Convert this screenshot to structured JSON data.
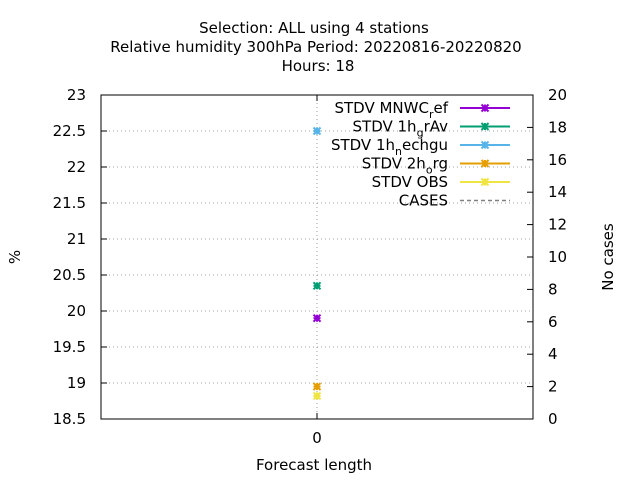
{
  "chart_data": {
    "type": "scatter",
    "title": {
      "line1": "Selection: ALL using     4 stations",
      "line2": "Relative humidity 300hPa   Period: 20220816-20220820",
      "line3": "Hours:  18"
    },
    "xlabel": "Forecast length",
    "ylabel": "%",
    "y2label": "No cases",
    "categories": [
      "0"
    ],
    "ylim": [
      18.5,
      23
    ],
    "y2lim": [
      0,
      20
    ],
    "yticks": [
      "18.5",
      "19",
      "19.5",
      "20",
      "20.5",
      "21",
      "21.5",
      "22",
      "22.5",
      "23"
    ],
    "y2ticks": [
      "0",
      "2",
      "4",
      "6",
      "8",
      "10",
      "12",
      "14",
      "16",
      "18",
      "20"
    ],
    "grid": true,
    "legend_position": "top-right",
    "series": [
      {
        "name_main": "STDV MNWC",
        "name_sub": "r",
        "name_tail": "ef",
        "color": "#9400d3",
        "x": 0,
        "y": 19.9,
        "axis": "y"
      },
      {
        "name_main": "STDV 1h",
        "name_sub": "g",
        "name_tail": "rAv",
        "color": "#009e73",
        "x": 0,
        "y": 20.35,
        "axis": "y"
      },
      {
        "name_main": "STDV 1h",
        "name_sub": "n",
        "name_tail": "echgu",
        "color": "#56b4e9",
        "x": 0,
        "y": 22.5,
        "axis": "y"
      },
      {
        "name_main": "STDV 2h",
        "name_sub": "o",
        "name_tail": "rg",
        "color": "#e69f00",
        "x": 0,
        "y": 18.95,
        "axis": "y"
      },
      {
        "name_main": "STDV OBS",
        "name_sub": "",
        "name_tail": "",
        "color": "#f0e442",
        "x": 0,
        "y": 18.82,
        "axis": "y"
      },
      {
        "name_main": "CASES",
        "name_sub": "",
        "name_tail": "",
        "color": "#808080",
        "dashed": true,
        "values": [],
        "axis": "y2"
      }
    ]
  }
}
